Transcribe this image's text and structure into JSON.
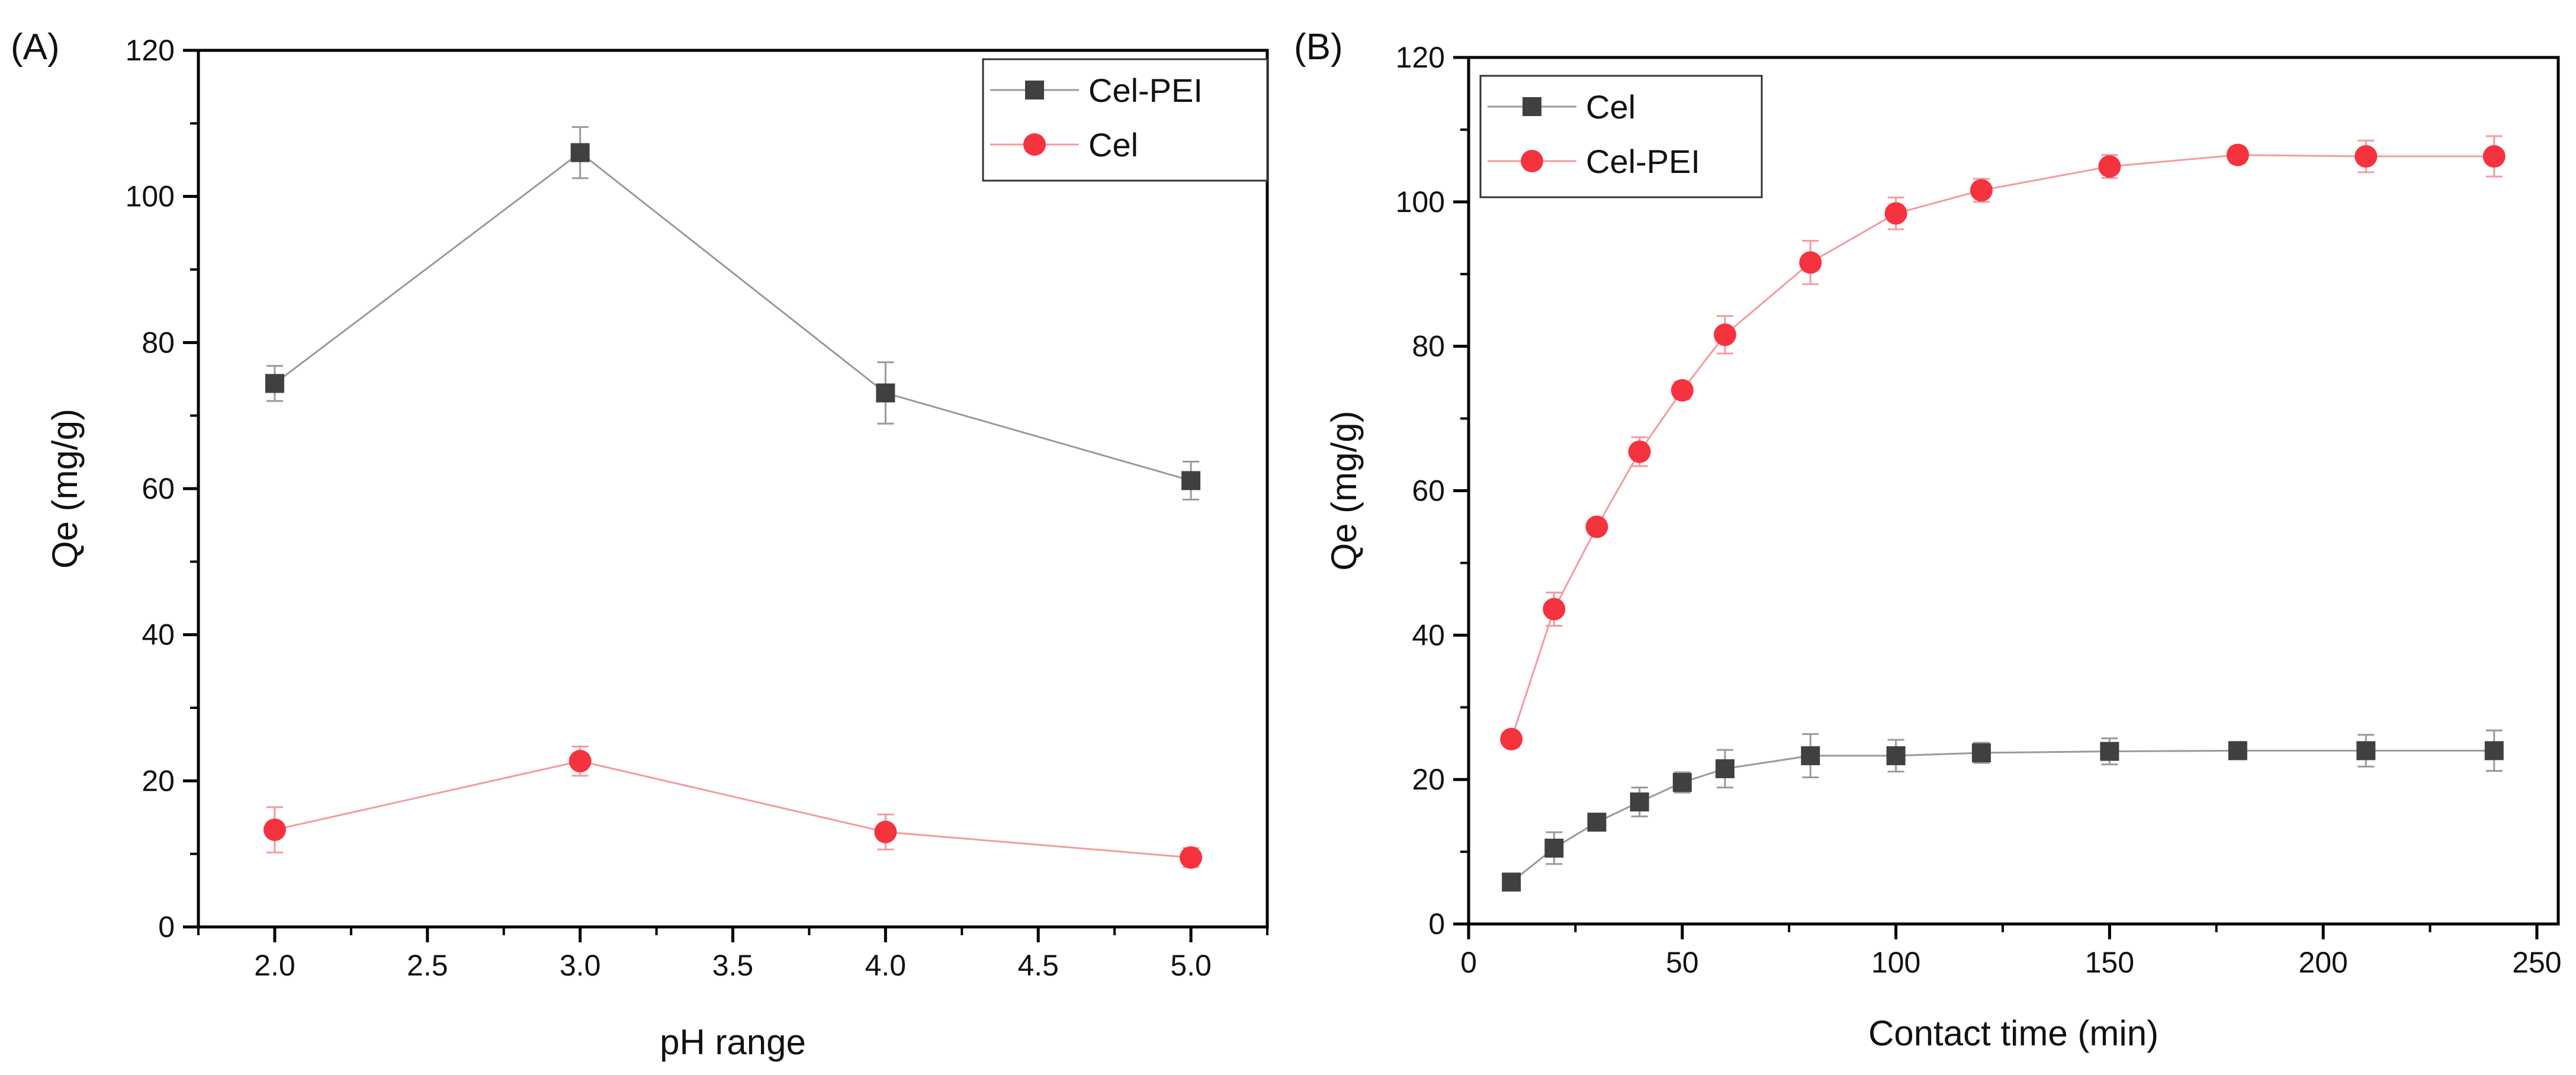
{
  "chart_data": [
    {
      "type": "line",
      "panel_label": "(A)",
      "xlabel": "pH range",
      "ylabel": "Qe (mg/g)",
      "xlim": [
        1.75,
        5.25
      ],
      "ylim": [
        0,
        120
      ],
      "xticks": [
        "2.0",
        "2.5",
        "3.0",
        "3.5",
        "4.0",
        "4.5",
        "5.0"
      ],
      "yticks": [
        "0",
        "20",
        "40",
        "60",
        "80",
        "100",
        "120"
      ],
      "legend_position": "top-right",
      "x": [
        2.0,
        3.0,
        4.0,
        5.0
      ],
      "series": [
        {
          "name": "Cel-PEI",
          "marker": "square",
          "color": "#404040",
          "line_color": "#9a9a9a",
          "values": [
            74.4,
            106.0,
            73.1,
            61.1
          ],
          "errors": [
            2.4,
            3.5,
            4.2,
            2.6
          ]
        },
        {
          "name": "Cel",
          "marker": "circle",
          "color": "#f5333f",
          "line_color": "#f59aa0",
          "values": [
            13.3,
            22.7,
            13.0,
            9.5
          ],
          "errors": [
            3.1,
            2.0,
            2.4,
            1.3
          ]
        }
      ]
    },
    {
      "type": "line",
      "panel_label": "(B)",
      "xlabel": "Contact time (min)",
      "ylabel": "Qe (mg/g)",
      "xlim": [
        0,
        255
      ],
      "ylim": [
        0,
        120
      ],
      "xticks": [
        "0",
        "50",
        "100",
        "150",
        "200",
        "250"
      ],
      "yticks": [
        "0",
        "20",
        "40",
        "60",
        "80",
        "100",
        "120"
      ],
      "legend_position": "top-left",
      "x": [
        10,
        20,
        30,
        40,
        50,
        60,
        80,
        100,
        120,
        150,
        180,
        210,
        240
      ],
      "series": [
        {
          "name": "Cel",
          "marker": "square",
          "color": "#404040",
          "line_color": "#9a9a9a",
          "values": [
            5.8,
            10.5,
            14.1,
            16.9,
            19.6,
            21.5,
            23.3,
            23.3,
            23.7,
            23.9,
            24.0,
            24.0,
            24.0
          ],
          "errors": [
            0.5,
            2.2,
            1.0,
            2.0,
            1.4,
            2.6,
            3.0,
            2.2,
            1.4,
            1.8,
            1.2,
            2.2,
            2.8
          ]
        },
        {
          "name": "Cel-PEI",
          "marker": "circle",
          "color": "#f5333f",
          "line_color": "#f59aa0",
          "values": [
            25.6,
            43.6,
            55.0,
            65.4,
            73.9,
            81.6,
            91.6,
            98.4,
            101.6,
            104.9,
            106.5,
            106.3,
            106.3
          ],
          "errors": [
            0.7,
            2.3,
            0.8,
            2.0,
            1.2,
            2.6,
            3.0,
            2.2,
            1.6,
            1.6,
            1.1,
            2.2,
            2.8
          ]
        }
      ]
    }
  ]
}
